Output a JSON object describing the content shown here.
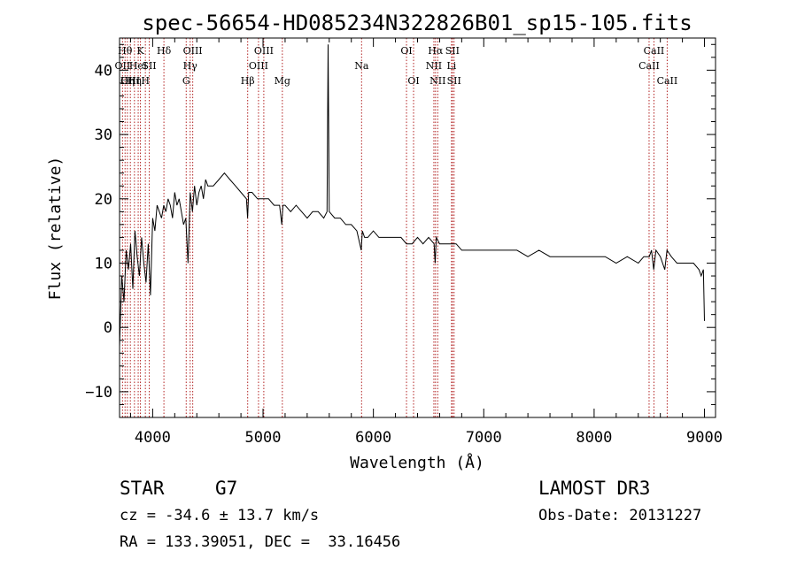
{
  "chart_data": {
    "type": "line",
    "title": "spec-56654-HD085234N322826B01_sp15-105.fits",
    "xlabel": "Wavelength (Å)",
    "ylabel": "Flux (relative)",
    "xlim": [
      3700,
      9100
    ],
    "ylim": [
      -14,
      45
    ],
    "x_ticks": [
      4000,
      5000,
      6000,
      7000,
      8000,
      9000
    ],
    "y_ticks": [
      -10,
      0,
      10,
      20,
      30,
      40
    ],
    "grid": false,
    "line_color": "#000000",
    "marker_color": "#b22222",
    "series": [
      {
        "x": [
          3700,
          3720,
          3740,
          3760,
          3780,
          3800,
          3820,
          3840,
          3860,
          3880,
          3900,
          3920,
          3940,
          3960,
          3980,
          4000,
          4020,
          4040,
          4060,
          4080,
          4100,
          4120,
          4140,
          4160,
          4180,
          4200,
          4220,
          4240,
          4260,
          4280,
          4300,
          4320,
          4340,
          4360,
          4380,
          4400,
          4420,
          4440,
          4460,
          4480,
          4500,
          4550,
          4600,
          4650,
          4700,
          4750,
          4800,
          4850,
          4860,
          4870,
          4900,
          4950,
          5000,
          5050,
          5100,
          5150,
          5170,
          5180,
          5200,
          5250,
          5300,
          5350,
          5400,
          5450,
          5500,
          5550,
          5580,
          5590,
          5600,
          5650,
          5700,
          5750,
          5800,
          5850,
          5890,
          5900,
          5920,
          5950,
          6000,
          6050,
          6100,
          6150,
          6200,
          6250,
          6300,
          6350,
          6400,
          6450,
          6500,
          6550,
          6560,
          6570,
          6600,
          6650,
          6700,
          6750,
          6800,
          6900,
          7000,
          7100,
          7200,
          7300,
          7400,
          7500,
          7600,
          7700,
          7800,
          7900,
          8000,
          8100,
          8200,
          8300,
          8400,
          8450,
          8500,
          8520,
          8540,
          8560,
          8600,
          8640,
          8660,
          8700,
          8750,
          8800,
          8850,
          8900,
          8950,
          8970,
          8990,
          9000
        ],
        "y": [
          -3,
          8,
          4,
          12,
          9,
          13,
          6,
          15,
          11,
          8,
          14,
          10,
          7,
          13,
          5,
          17,
          15,
          19,
          18,
          17,
          19,
          18,
          20,
          19,
          17,
          21,
          19,
          20,
          18,
          16,
          17,
          10,
          21,
          18,
          22,
          19,
          21,
          22,
          20,
          23,
          22,
          22,
          23,
          24,
          23,
          22,
          21,
          20,
          17,
          21,
          21,
          20,
          20,
          20,
          19,
          19,
          16,
          19,
          19,
          18,
          19,
          18,
          17,
          18,
          18,
          17,
          18,
          44,
          18,
          17,
          17,
          16,
          16,
          15,
          12,
          15,
          14,
          14,
          15,
          14,
          14,
          14,
          14,
          14,
          13,
          13,
          14,
          13,
          14,
          13,
          10,
          14,
          13,
          13,
          13,
          13,
          12,
          12,
          12,
          12,
          12,
          12,
          11,
          12,
          11,
          11,
          11,
          11,
          11,
          11,
          10,
          11,
          10,
          11,
          11,
          12,
          9,
          12,
          11,
          9,
          12,
          11,
          10,
          10,
          10,
          10,
          9,
          8,
          9,
          1
        ]
      }
    ],
    "line_markers": [
      {
        "x": 3727,
        "label": "OII",
        "row": 2
      },
      {
        "x": 3750,
        "label": "Hθ",
        "row": 1
      },
      {
        "x": 3771,
        "label": "Hη",
        "row": 3
      },
      {
        "x": 3798,
        "label": "OIII",
        "row": 3
      },
      {
        "x": 3835,
        "label": "Hη",
        "row": 3
      },
      {
        "x": 3869,
        "label": "HeI",
        "row": 2
      },
      {
        "x": 3889,
        "label": "K",
        "row": 1
      },
      {
        "x": 3934,
        "label": "H",
        "row": 3
      },
      {
        "x": 3969,
        "label": "SII",
        "row": 2
      },
      {
        "x": 4102,
        "label": "Hδ",
        "row": 1
      },
      {
        "x": 4304,
        "label": "G",
        "row": 3
      },
      {
        "x": 4340,
        "label": "Hγ",
        "row": 2
      },
      {
        "x": 4363,
        "label": "OIII",
        "row": 1
      },
      {
        "x": 4861,
        "label": "Hβ",
        "row": 3
      },
      {
        "x": 4959,
        "label": "OIII",
        "row": 2
      },
      {
        "x": 5007,
        "label": "OIII",
        "row": 1
      },
      {
        "x": 5175,
        "label": "Mg",
        "row": 3
      },
      {
        "x": 5893,
        "label": "Na",
        "row": 2
      },
      {
        "x": 6300,
        "label": "OI",
        "row": 1
      },
      {
        "x": 6364,
        "label": "OI",
        "row": 3
      },
      {
        "x": 6548,
        "label": "NII",
        "row": 2
      },
      {
        "x": 6563,
        "label": "Hα",
        "row": 1
      },
      {
        "x": 6583,
        "label": "NII",
        "row": 3
      },
      {
        "x": 6708,
        "label": "Li",
        "row": 2
      },
      {
        "x": 6716,
        "label": "SII",
        "row": 1
      },
      {
        "x": 6731,
        "label": "SII",
        "row": 3
      },
      {
        "x": 8498,
        "label": "CaII",
        "row": 2
      },
      {
        "x": 8542,
        "label": "CaII",
        "row": 1
      },
      {
        "x": 8662,
        "label": "CaII",
        "row": 3
      }
    ]
  },
  "info": {
    "class": "STAR",
    "subclass": "G7",
    "cz": "cz = -34.6 ± 13.7 km/s",
    "radec": "RA = 133.39051, DEC =  33.16456",
    "survey": "LAMOST DR3",
    "obsdate": "Obs-Date: 20131227"
  }
}
